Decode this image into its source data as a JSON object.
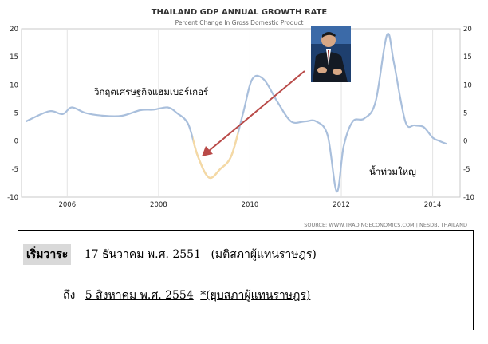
{
  "chart_data": {
    "type": "line",
    "title": "THAILAND GDP ANNUAL GROWTH RATE",
    "subtitle": "Percent Change In Gross Domestic Product",
    "source": "SOURCE: WWW.TRADINGECONOMICS.COM  |  NESDB, THAILAND",
    "xlim": [
      2005,
      2014.6
    ],
    "ylim": [
      -10,
      20
    ],
    "x_ticks": [
      "2006",
      "2008",
      "2010",
      "2012",
      "2014"
    ],
    "y_ticks": [
      "-10",
      "-5",
      "0",
      "5",
      "10",
      "15",
      "20"
    ],
    "grid": "vertical",
    "colors": {
      "default": "#a9bfdc",
      "highlight": "#f5d9a4",
      "arrow": "#b94a48"
    },
    "highlight_range": [
      2008.75,
      2009.75
    ],
    "series": [
      {
        "x": [
          2005.1,
          2005.6,
          2005.9,
          2006.1,
          2006.4,
          2006.8,
          2007.2,
          2007.6,
          2007.9,
          2008.2,
          2008.4,
          2008.65,
          2008.85,
          2009.1,
          2009.35,
          2009.6,
          2009.85,
          2010.05,
          2010.3,
          2010.6,
          2010.9,
          2011.2,
          2011.45,
          2011.7,
          2011.9,
          2012.05,
          2012.25,
          2012.5,
          2012.75,
          2013.0,
          2013.15,
          2013.4,
          2013.6,
          2013.8,
          2014.0,
          2014.15,
          2014.3
        ],
        "y": [
          3.5,
          5.3,
          4.8,
          6.0,
          5.0,
          4.5,
          4.5,
          5.5,
          5.6,
          6.0,
          5.0,
          3.0,
          -2.5,
          -6.5,
          -5.0,
          -2.5,
          5.0,
          11.0,
          11.0,
          7.0,
          3.5,
          3.5,
          3.5,
          1.0,
          -9.0,
          -1.0,
          3.5,
          4.0,
          7.0,
          18.9,
          14.0,
          3.5,
          2.8,
          2.5,
          0.6,
          0.0,
          -0.5
        ]
      }
    ]
  },
  "annotations": {
    "crisis_label": "วิกฤตเศรษฐกิจแฮมเบอร์เกอร์",
    "flood_label": "น้ำท่วมใหญ่"
  },
  "term": {
    "start_label": "เริ่มวาระ",
    "start_date": "17 ธันวาคม พ.ศ. 2551",
    "start_note": "(มติสภาผู้แทนราษฎร)",
    "end_prefix": "ถึง",
    "end_date": "5 สิงหาคม พ.ศ. 2554",
    "end_note": "*(ยุบสภาผู้แทนราษฎร)"
  }
}
